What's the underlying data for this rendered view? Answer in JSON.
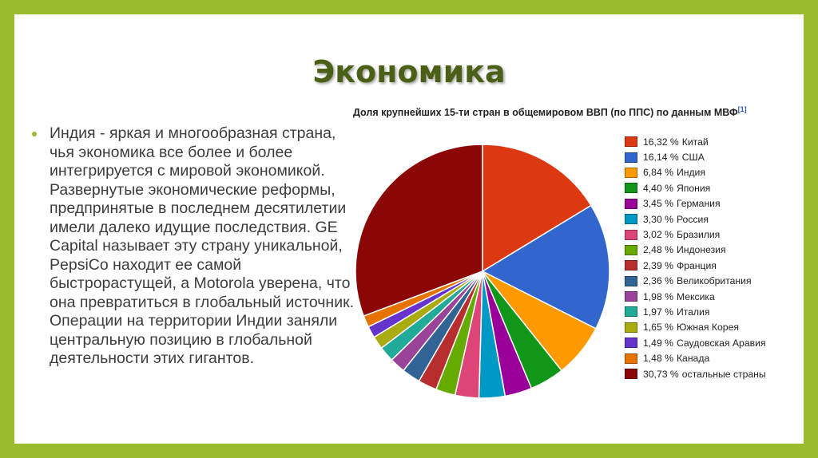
{
  "slide": {
    "title": "Экономика",
    "bullet": "Индия - яркая и многообразная страна, чья экономика все более и более интегрируется с мировой экономикой. Развернутые экономические реформы, предпринятые в последнем десятилетии имели далеко идущие последствия. GE Capital называет эту страну уникальной, PepsiCo находит ее самой быстрорастущей, а Motorola уверена, что она превратиться в глобальный источник. Операции на территории Индии заняли центральную позицию в глобальной деятельности этих гигантов."
  },
  "chart_data": {
    "type": "pie",
    "title": "Доля крупнейших 15-ти стран в общемировом ВВП (по ППС) по данным МВФ",
    "title_ref": "[1]",
    "legend_position": "right",
    "slices": [
      {
        "label": "Китай",
        "value": 16.32,
        "display": "16,32 %",
        "color": "#dc3912"
      },
      {
        "label": "США",
        "value": 16.14,
        "display": "16,14 %",
        "color": "#3366cc"
      },
      {
        "label": "Индия",
        "value": 6.84,
        "display": "6,84 %",
        "color": "#ff9900"
      },
      {
        "label": "Япония",
        "value": 4.4,
        "display": "4,40 %",
        "color": "#109618"
      },
      {
        "label": "Германия",
        "value": 3.45,
        "display": "3,45 %",
        "color": "#990099"
      },
      {
        "label": "Россия",
        "value": 3.3,
        "display": "3,30 %",
        "color": "#0099c6"
      },
      {
        "label": "Бразилия",
        "value": 3.02,
        "display": "3,02 %",
        "color": "#dd4477"
      },
      {
        "label": "Индонезия",
        "value": 2.48,
        "display": "2,48 %",
        "color": "#66aa00"
      },
      {
        "label": "Франция",
        "value": 2.39,
        "display": "2,39 %",
        "color": "#b82e2e"
      },
      {
        "label": "Великобритания",
        "value": 2.36,
        "display": "2,36 %",
        "color": "#316395"
      },
      {
        "label": "Мексика",
        "value": 1.98,
        "display": "1,98 %",
        "color": "#994499"
      },
      {
        "label": "Италия",
        "value": 1.97,
        "display": "1,97 %",
        "color": "#22aa99"
      },
      {
        "label": "Южная Корея",
        "value": 1.65,
        "display": "1,65 %",
        "color": "#aaaa11"
      },
      {
        "label": "Саудовская Аравия",
        "value": 1.49,
        "display": "1,49 %",
        "color": "#6633cc"
      },
      {
        "label": "Канада",
        "value": 1.48,
        "display": "1,48 %",
        "color": "#e67300"
      },
      {
        "label": "остальные страны",
        "value": 30.73,
        "display": "30,73 %",
        "color": "#8b0707"
      }
    ]
  }
}
